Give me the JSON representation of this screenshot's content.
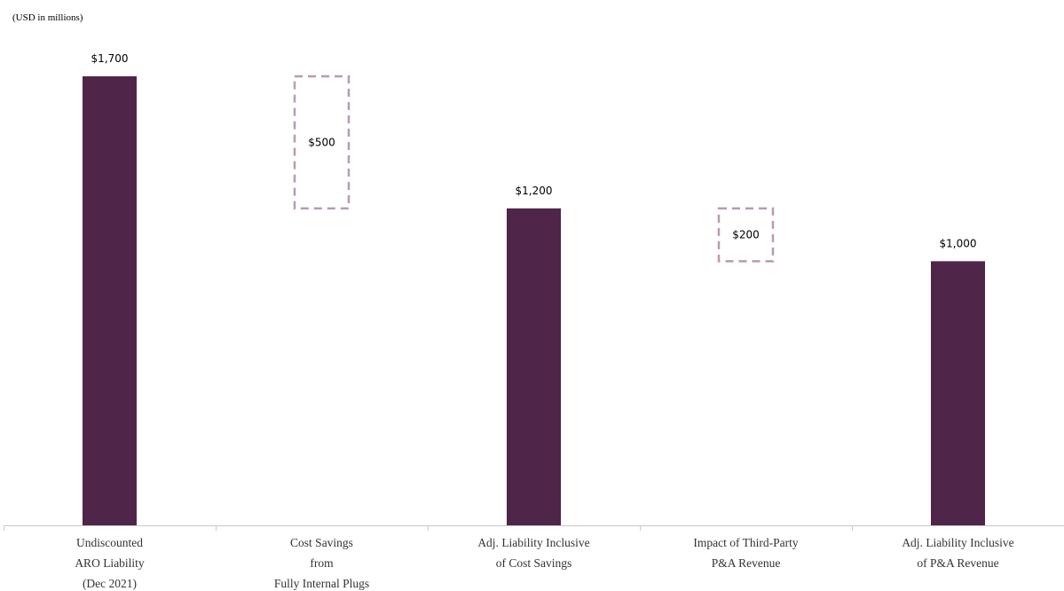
{
  "chart_data": {
    "type": "bar",
    "subtype": "waterfall",
    "unit_note": "(USD in millions)",
    "categories": [
      [
        "Undiscounted",
        "ARO Liability",
        "(Dec 2021)"
      ],
      [
        "Cost Savings",
        "from",
        "Fully Internal Plugs"
      ],
      [
        "Adj. Liability Inclusive",
        "of Cost Savings"
      ],
      [
        "Impact of Third-Party",
        "P&A Revenue"
      ],
      [
        "Adj. Liability Inclusive",
        "of P&A Revenue"
      ]
    ],
    "bars": [
      {
        "kind": "total",
        "value": 1700,
        "label": "$1,700"
      },
      {
        "kind": "decrease",
        "value": 500,
        "label": "$500"
      },
      {
        "kind": "total",
        "value": 1200,
        "label": "$1,200"
      },
      {
        "kind": "decrease",
        "value": 200,
        "label": "$200"
      },
      {
        "kind": "total",
        "value": 1000,
        "label": "$1,000"
      }
    ],
    "ylim": [
      0,
      1700
    ],
    "grid": false,
    "legend": "none",
    "colors": {
      "total": "#4f2549",
      "decrease_border": "#b89ab2",
      "baseline": "#c8c8c8"
    }
  }
}
